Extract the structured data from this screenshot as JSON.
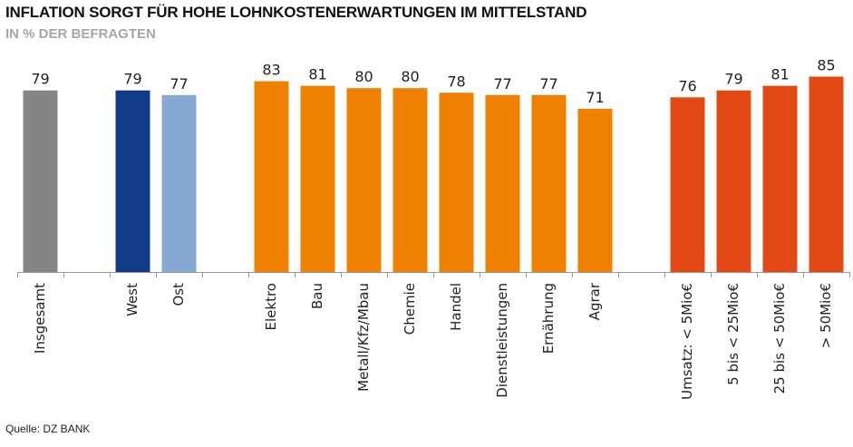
{
  "header": {
    "title": "INFLATION SORGT FÜR HOHE LOHNKOSTENERWARTUNGEN IM MITTELSTAND",
    "subtitle": "IN % DER BEFRAGTEN"
  },
  "footer": {
    "source": "Quelle: DZ BANK"
  },
  "chart_data": {
    "type": "bar",
    "title": "INFLATION SORGT FÜR HOHE LOHNKOSTENERWARTUNGEN IM MITTELSTAND",
    "subtitle": "IN % DER BEFRAGTEN",
    "xlabel": "",
    "ylabel": "",
    "ylim": [
      0,
      100
    ],
    "grid": false,
    "legend": "none",
    "categories": [
      "Insgesamt",
      "West",
      "Ost",
      "Elektro",
      "Bau",
      "Metall/Kfz/Mbau",
      "Chemie",
      "Handel",
      "Dienstleistungen",
      "Ernährung",
      "Agrar",
      "Umsatz: < 5Mio€",
      "5 bis < 25Mio€",
      "25 bis < 50Mio€",
      "> 50Mio€"
    ],
    "values": [
      79,
      79,
      77,
      83,
      81,
      80,
      80,
      78,
      77,
      77,
      71,
      76,
      79,
      81,
      85
    ],
    "bar_colors": [
      "#858585",
      "#0f3b87",
      "#87a8d2",
      "#f08000",
      "#f08000",
      "#f08000",
      "#f08000",
      "#f08000",
      "#f08000",
      "#f08000",
      "#f08000",
      "#e34915",
      "#e34915",
      "#e34915",
      "#e34915"
    ],
    "axis_color": "#999999"
  }
}
